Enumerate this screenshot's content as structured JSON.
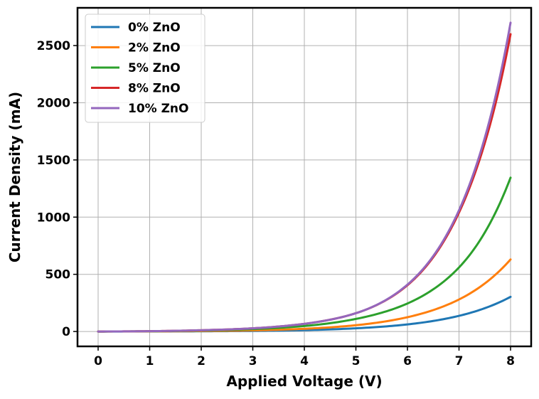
{
  "chart_data": {
    "type": "line",
    "title": "",
    "xlabel": "Applied Voltage (V)",
    "ylabel": "Current Density (mA)",
    "xlim": [
      -0.4,
      8.4
    ],
    "ylim": [
      -130,
      2830
    ],
    "xticks": [
      0,
      1,
      2,
      3,
      4,
      5,
      6,
      7,
      8
    ],
    "yticks": [
      0,
      500,
      1000,
      1500,
      2000,
      2500
    ],
    "grid": true,
    "legend_position": "top-left",
    "x": [
      0,
      1,
      2,
      3,
      4,
      5,
      6,
      7,
      8
    ],
    "series": [
      {
        "name": "0% ZnO",
        "color": "#1f77b4",
        "values": [
          0,
          0.5,
          2,
          5,
          12,
          28,
          62,
          137,
          303
        ]
      },
      {
        "name": "2% ZnO",
        "color": "#ff7f0e",
        "values": [
          0,
          1,
          4,
          10,
          24,
          55,
          125,
          280,
          630
        ]
      },
      {
        "name": "5% ZnO",
        "color": "#2ca02c",
        "values": [
          0,
          2,
          8,
          21,
          48,
          110,
          245,
          560,
          1345
        ]
      },
      {
        "name": "8% ZnO",
        "color": "#d62728",
        "values": [
          0,
          3,
          11,
          28,
          67,
          160,
          405,
          1040,
          2600
        ]
      },
      {
        "name": "10% ZnO",
        "color": "#9467bd",
        "values": [
          0,
          3,
          11,
          28,
          67,
          160,
          410,
          1060,
          2700
        ]
      }
    ]
  }
}
